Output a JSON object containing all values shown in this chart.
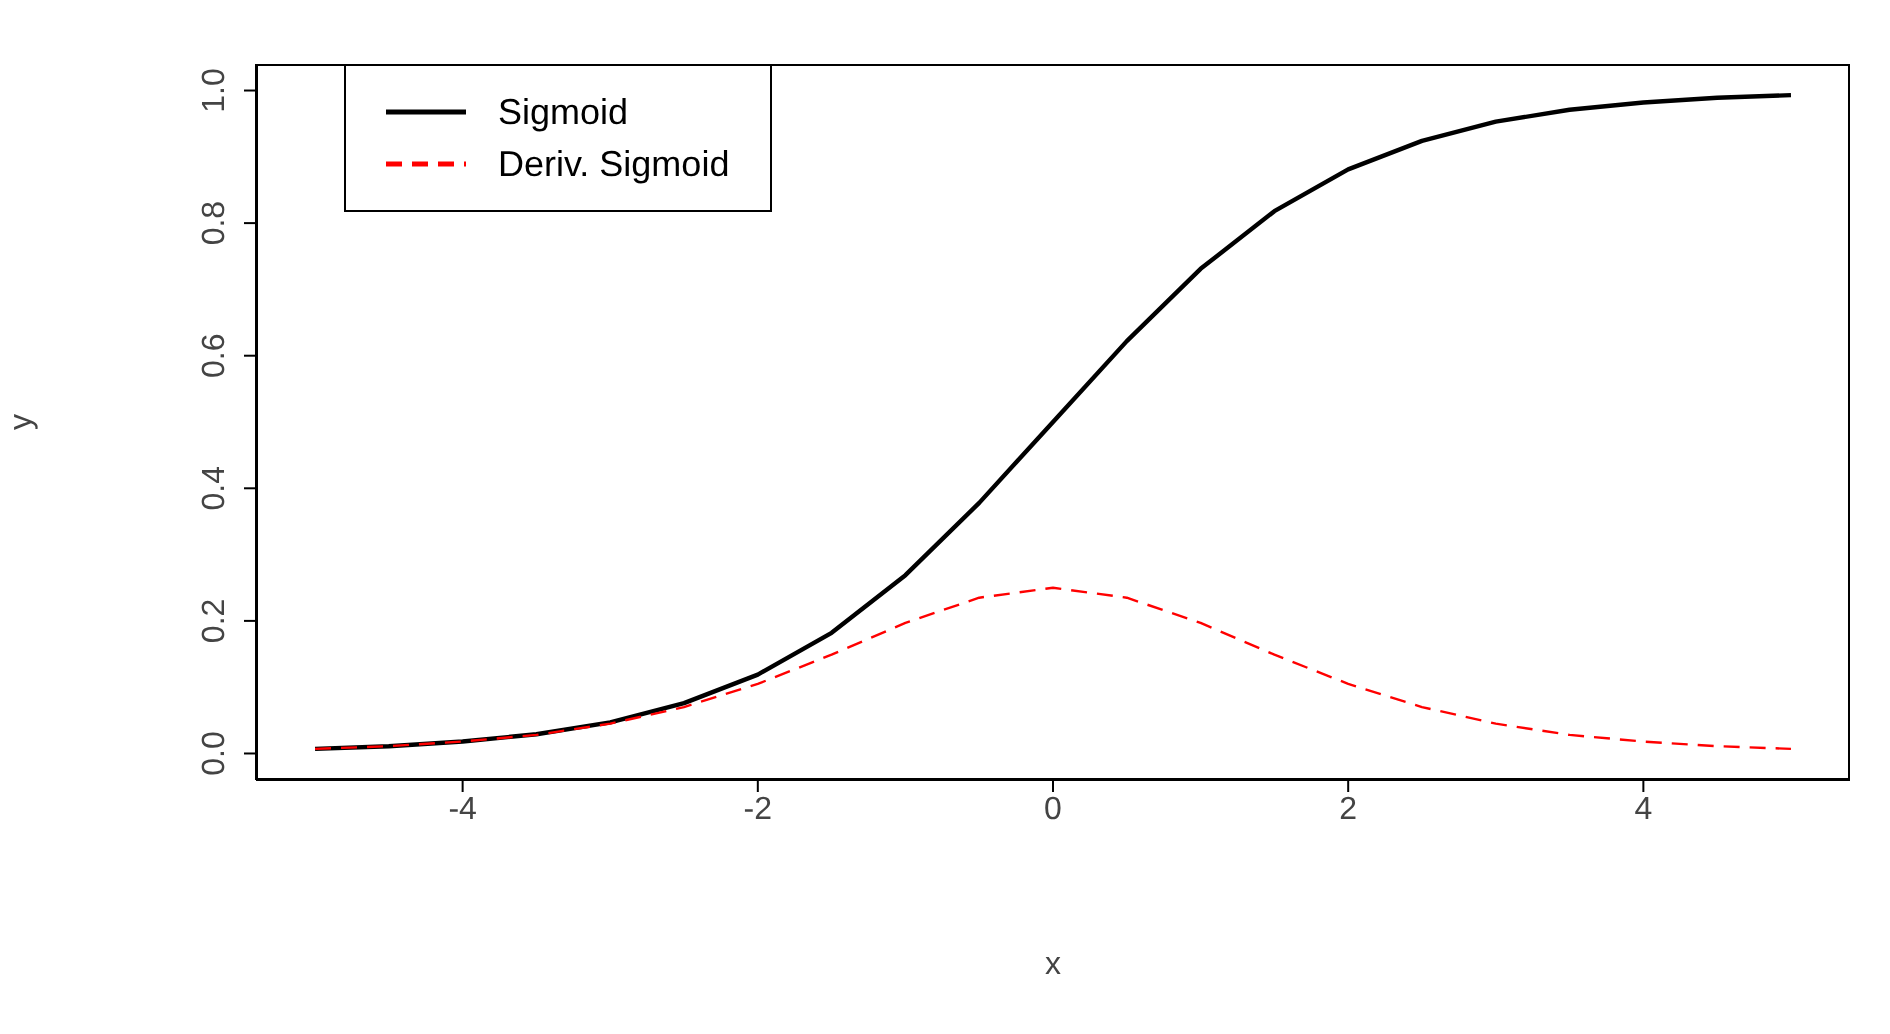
{
  "chart_data": {
    "type": "line",
    "xlabel": "x",
    "ylabel": "y",
    "x": [
      -5,
      -4.5,
      -4,
      -3.5,
      -3,
      -2.5,
      -2,
      -1.5,
      -1,
      -0.5,
      0,
      0.5,
      1,
      1.5,
      2,
      2.5,
      3,
      3.5,
      4,
      4.5,
      5
    ],
    "series": [
      {
        "name": "Sigmoid",
        "color": "#000000",
        "line_style": "solid",
        "values": [
          0.007,
          0.011,
          0.018,
          0.029,
          0.047,
          0.076,
          0.119,
          0.182,
          0.269,
          0.378,
          0.5,
          0.622,
          0.731,
          0.818,
          0.881,
          0.924,
          0.953,
          0.971,
          0.982,
          0.989,
          0.993
        ]
      },
      {
        "name": "Deriv. Sigmoid",
        "color": "#ff0000",
        "line_style": "dashed",
        "values": [
          0.007,
          0.011,
          0.018,
          0.028,
          0.045,
          0.07,
          0.105,
          0.149,
          0.197,
          0.235,
          0.25,
          0.235,
          0.197,
          0.149,
          0.105,
          0.07,
          0.045,
          0.028,
          0.018,
          0.011,
          0.007
        ]
      }
    ],
    "xlim": [
      -5.4,
      5.4
    ],
    "xticks": [
      -4,
      -2,
      0,
      2,
      4
    ],
    "ylim": [
      -0.04,
      1.04
    ],
    "yticks": [
      {
        "value": 0,
        "label": "0.0"
      },
      {
        "value": 0.2,
        "label": "0.2"
      },
      {
        "value": 0.4,
        "label": "0.4"
      },
      {
        "value": 0.6,
        "label": "0.6"
      },
      {
        "value": 0.8,
        "label": "0.8"
      },
      {
        "value": 1,
        "label": "1.0"
      }
    ],
    "grid": false,
    "legend": "top left",
    "marker": "none"
  }
}
